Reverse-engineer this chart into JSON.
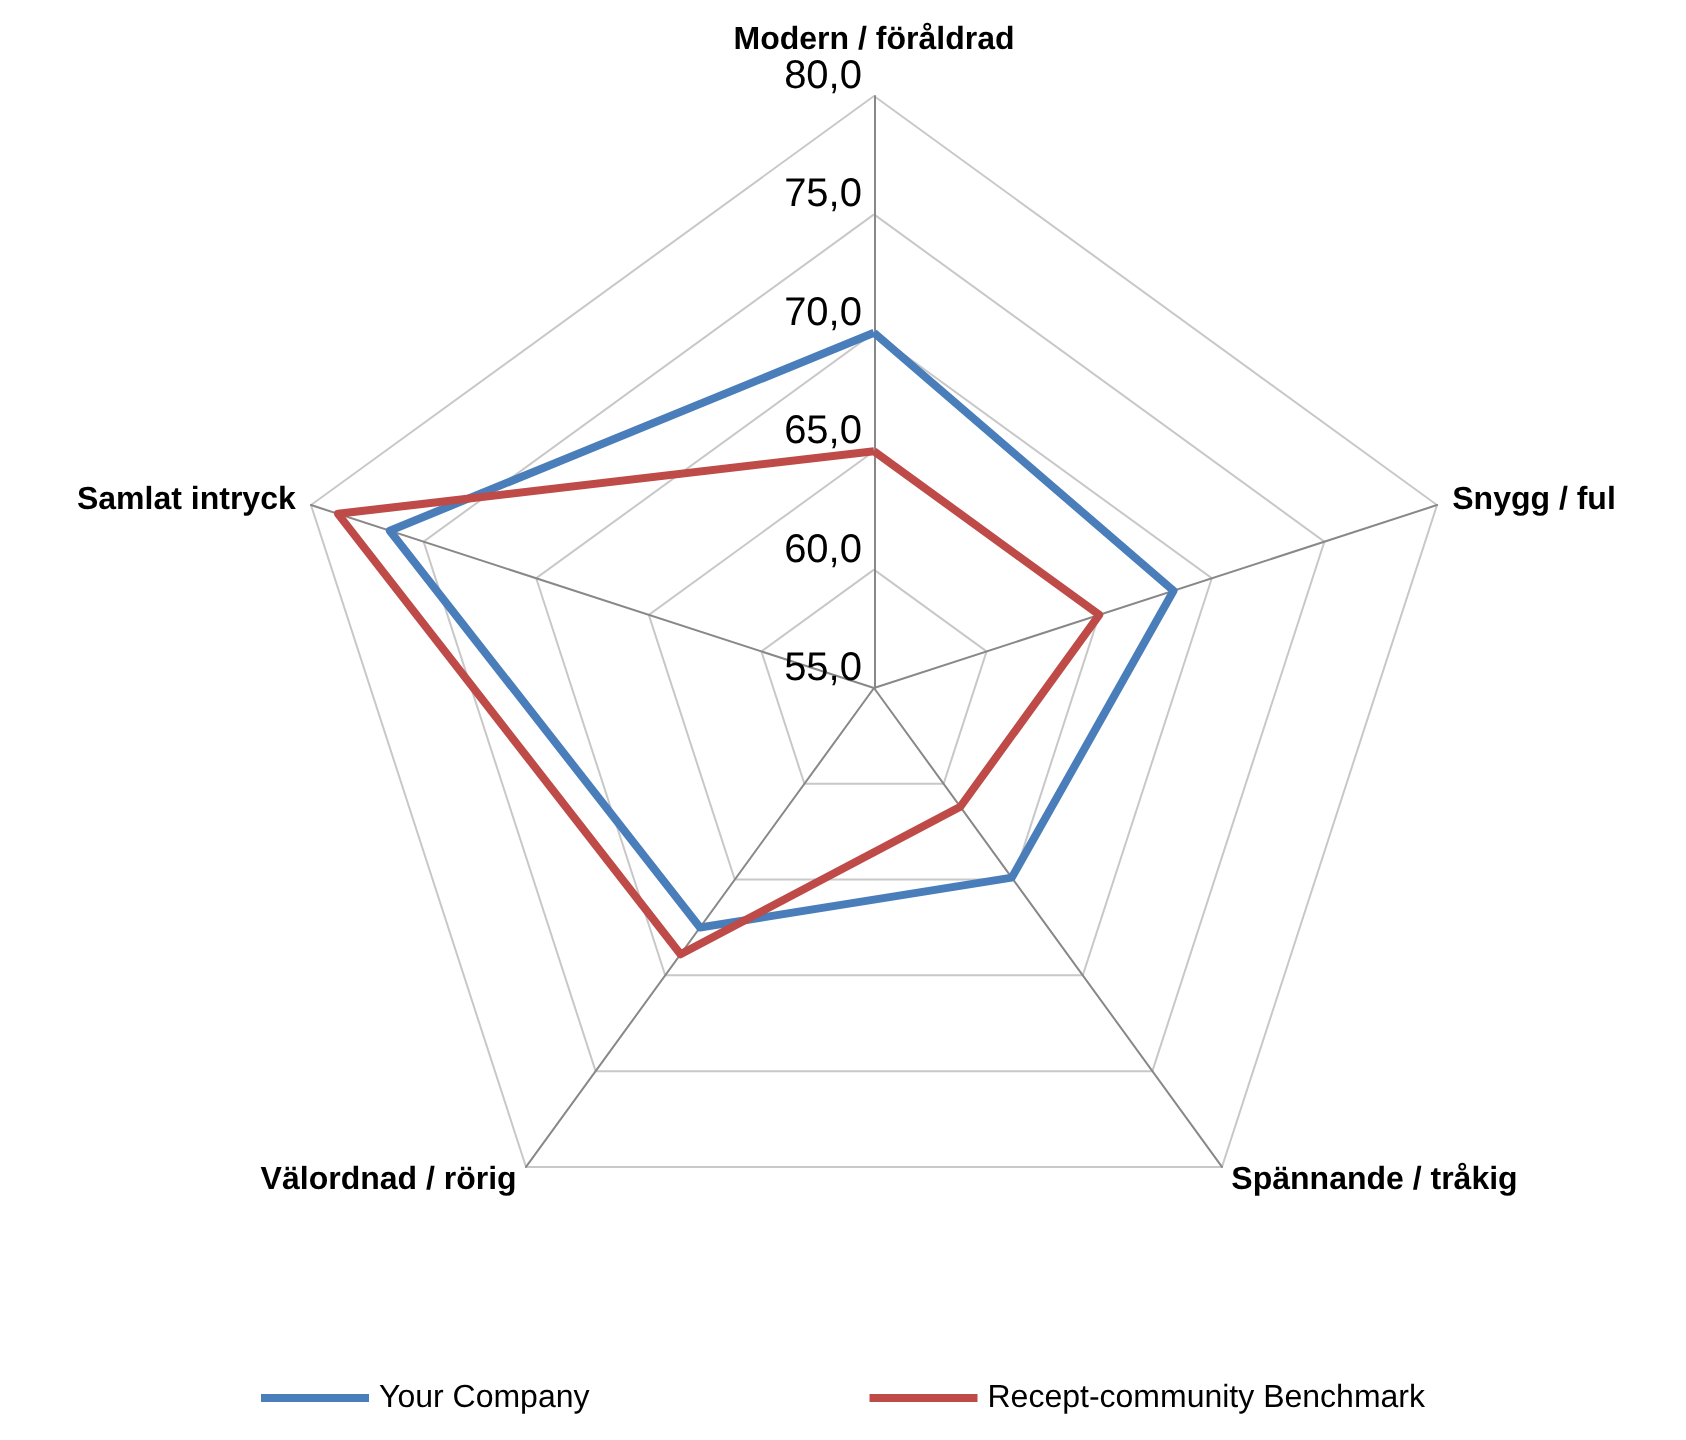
{
  "chart_data": {
    "type": "radar",
    "categories": [
      "Modern / föråldrad",
      "Snygg / ful",
      "Spännande / tråkig",
      "Välordnad / rörig",
      "Samlat intryck"
    ],
    "series": [
      {
        "name": "Your Company",
        "color": "#4a7ebb",
        "values": [
          70,
          68.3,
          64.9,
          67.5,
          76.5
        ]
      },
      {
        "name": "Recept-community Benchmark",
        "color": "#be4b48",
        "values": [
          65,
          65,
          61.2,
          68.9,
          78.8
        ]
      }
    ],
    "ylim": [
      55,
      80
    ],
    "yticks": [
      {
        "value": 55,
        "label": "55,0"
      },
      {
        "value": 60,
        "label": "60,0"
      },
      {
        "value": 65,
        "label": "65,0"
      },
      {
        "value": 70,
        "label": "70,0"
      },
      {
        "value": 75,
        "label": "75,0"
      },
      {
        "value": 80,
        "label": "80,0"
      }
    ],
    "grid": true,
    "legend": "bottom",
    "marker": "none"
  }
}
